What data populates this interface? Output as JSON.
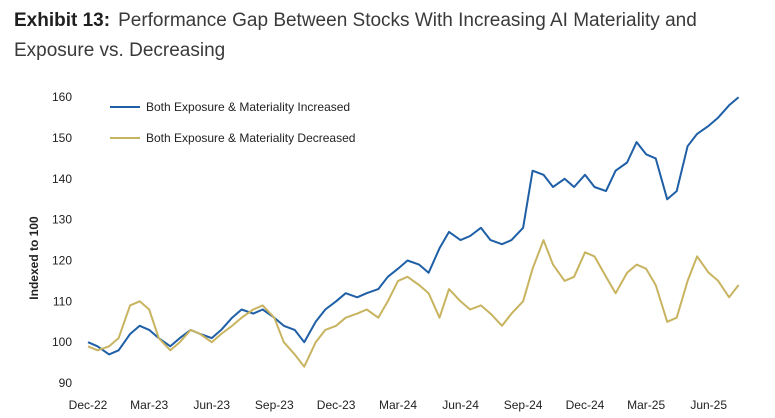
{
  "header": {
    "exhibit_label": "Exhibit 13:",
    "title": "Performance Gap Between Stocks With Increasing AI Materiality and Exposure vs. Decreasing"
  },
  "chart_data": {
    "type": "line",
    "ylabel": "Indexed to 100",
    "xlabel": "",
    "ylim": [
      90,
      162
    ],
    "yticks": [
      90,
      100,
      110,
      120,
      130,
      140,
      150,
      160
    ],
    "x_tick_labels": [
      "Dec-22",
      "Mar-23",
      "Jun-23",
      "Sep-23",
      "Dec-23",
      "Mar-24",
      "Jun-24",
      "Sep-24",
      "Dec-24",
      "Mar-25",
      "Jun-25"
    ],
    "x_range": [
      "2022-12-01",
      "2025-07-20"
    ],
    "legend_position": "top-left",
    "grid": false,
    "series": [
      {
        "name": "Both Exposure & Materiality Increased",
        "color": "#1f5fa6",
        "points": [
          [
            "2022-12-01",
            100
          ],
          [
            "2022-12-15",
            99
          ],
          [
            "2023-01-01",
            97
          ],
          [
            "2023-01-15",
            98
          ],
          [
            "2023-02-01",
            102
          ],
          [
            "2023-02-15",
            104
          ],
          [
            "2023-03-01",
            103
          ],
          [
            "2023-03-15",
            101
          ],
          [
            "2023-04-01",
            99
          ],
          [
            "2023-04-15",
            101
          ],
          [
            "2023-05-01",
            103
          ],
          [
            "2023-05-15",
            102
          ],
          [
            "2023-06-01",
            101
          ],
          [
            "2023-06-15",
            103
          ],
          [
            "2023-07-01",
            106
          ],
          [
            "2023-07-15",
            108
          ],
          [
            "2023-08-01",
            107
          ],
          [
            "2023-08-15",
            108
          ],
          [
            "2023-09-01",
            106
          ],
          [
            "2023-09-15",
            104
          ],
          [
            "2023-10-01",
            103
          ],
          [
            "2023-10-15",
            100
          ],
          [
            "2023-11-01",
            105
          ],
          [
            "2023-11-15",
            108
          ],
          [
            "2023-12-01",
            110
          ],
          [
            "2023-12-15",
            112
          ],
          [
            "2024-01-01",
            111
          ],
          [
            "2024-01-15",
            112
          ],
          [
            "2024-02-01",
            113
          ],
          [
            "2024-02-15",
            116
          ],
          [
            "2024-03-01",
            118
          ],
          [
            "2024-03-15",
            120
          ],
          [
            "2024-04-01",
            119
          ],
          [
            "2024-04-15",
            117
          ],
          [
            "2024-05-01",
            123
          ],
          [
            "2024-05-15",
            127
          ],
          [
            "2024-06-01",
            125
          ],
          [
            "2024-06-15",
            126
          ],
          [
            "2024-07-01",
            128
          ],
          [
            "2024-07-15",
            125
          ],
          [
            "2024-08-01",
            124
          ],
          [
            "2024-08-15",
            125
          ],
          [
            "2024-09-01",
            128
          ],
          [
            "2024-09-15",
            142
          ],
          [
            "2024-10-01",
            141
          ],
          [
            "2024-10-15",
            138
          ],
          [
            "2024-11-01",
            140
          ],
          [
            "2024-11-15",
            138
          ],
          [
            "2024-12-01",
            141
          ],
          [
            "2024-12-15",
            138
          ],
          [
            "2025-01-01",
            137
          ],
          [
            "2025-01-15",
            142
          ],
          [
            "2025-02-01",
            144
          ],
          [
            "2025-02-15",
            149
          ],
          [
            "2025-03-01",
            146
          ],
          [
            "2025-03-15",
            145
          ],
          [
            "2025-04-01",
            135
          ],
          [
            "2025-04-15",
            137
          ],
          [
            "2025-05-01",
            148
          ],
          [
            "2025-05-15",
            151
          ],
          [
            "2025-06-01",
            153
          ],
          [
            "2025-06-15",
            155
          ],
          [
            "2025-07-01",
            158
          ],
          [
            "2025-07-15",
            160
          ]
        ]
      },
      {
        "name": "Both Exposure & Materiality Decreased",
        "color": "#c8b460",
        "points": [
          [
            "2022-12-01",
            99
          ],
          [
            "2022-12-15",
            98
          ],
          [
            "2023-01-01",
            99
          ],
          [
            "2023-01-15",
            101
          ],
          [
            "2023-02-01",
            109
          ],
          [
            "2023-02-15",
            110
          ],
          [
            "2023-03-01",
            108
          ],
          [
            "2023-03-15",
            101
          ],
          [
            "2023-04-01",
            98
          ],
          [
            "2023-04-15",
            100
          ],
          [
            "2023-05-01",
            103
          ],
          [
            "2023-05-15",
            102
          ],
          [
            "2023-06-01",
            100
          ],
          [
            "2023-06-15",
            102
          ],
          [
            "2023-07-01",
            104
          ],
          [
            "2023-07-15",
            106
          ],
          [
            "2023-08-01",
            108
          ],
          [
            "2023-08-15",
            109
          ],
          [
            "2023-09-01",
            106
          ],
          [
            "2023-09-15",
            100
          ],
          [
            "2023-10-01",
            97
          ],
          [
            "2023-10-15",
            94
          ],
          [
            "2023-11-01",
            100
          ],
          [
            "2023-11-15",
            103
          ],
          [
            "2023-12-01",
            104
          ],
          [
            "2023-12-15",
            106
          ],
          [
            "2024-01-01",
            107
          ],
          [
            "2024-01-15",
            108
          ],
          [
            "2024-02-01",
            106
          ],
          [
            "2024-02-15",
            110
          ],
          [
            "2024-03-01",
            115
          ],
          [
            "2024-03-15",
            116
          ],
          [
            "2024-04-01",
            114
          ],
          [
            "2024-04-15",
            112
          ],
          [
            "2024-05-01",
            106
          ],
          [
            "2024-05-15",
            113
          ],
          [
            "2024-06-01",
            110
          ],
          [
            "2024-06-15",
            108
          ],
          [
            "2024-07-01",
            109
          ],
          [
            "2024-07-15",
            107
          ],
          [
            "2024-08-01",
            104
          ],
          [
            "2024-08-15",
            107
          ],
          [
            "2024-09-01",
            110
          ],
          [
            "2024-09-15",
            118
          ],
          [
            "2024-10-01",
            125
          ],
          [
            "2024-10-15",
            119
          ],
          [
            "2024-11-01",
            115
          ],
          [
            "2024-11-15",
            116
          ],
          [
            "2024-12-01",
            122
          ],
          [
            "2024-12-15",
            121
          ],
          [
            "2025-01-01",
            116
          ],
          [
            "2025-01-15",
            112
          ],
          [
            "2025-02-01",
            117
          ],
          [
            "2025-02-15",
            119
          ],
          [
            "2025-03-01",
            118
          ],
          [
            "2025-03-15",
            114
          ],
          [
            "2025-04-01",
            105
          ],
          [
            "2025-04-15",
            106
          ],
          [
            "2025-05-01",
            115
          ],
          [
            "2025-05-15",
            121
          ],
          [
            "2025-06-01",
            117
          ],
          [
            "2025-06-15",
            115
          ],
          [
            "2025-07-01",
            111
          ],
          [
            "2025-07-15",
            114
          ]
        ]
      }
    ]
  }
}
